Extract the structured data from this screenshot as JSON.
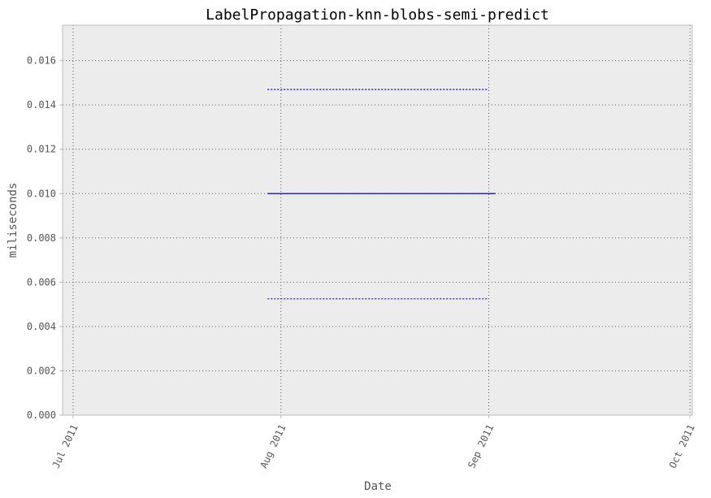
{
  "chart_data": {
    "type": "line",
    "title": "LabelPropagation-knn-blobs-semi-predict",
    "xlabel": "Date",
    "ylabel": "miliseconds",
    "x_tick_labels": [
      "Jul 2011",
      "Aug 2011",
      "Sep 2011",
      "Oct 2011"
    ],
    "y_tick_labels": [
      "0.000",
      "0.002",
      "0.004",
      "0.006",
      "0.008",
      "0.010",
      "0.012",
      "0.014",
      "0.016"
    ],
    "xlim": [
      "2011-06-28",
      "2012-10-01"
    ],
    "ylim": [
      0,
      0.0176
    ],
    "grid": true,
    "series": [
      {
        "style": "solid",
        "color": "#0000ff",
        "x": [
          "2011-07-30",
          "2011-09-02"
        ],
        "values": [
          0.01,
          0.01
        ]
      },
      {
        "style": "dotted",
        "color": "#0000ff",
        "x": [
          "2011-07-30",
          "2011-09-01"
        ],
        "values": [
          0.0147,
          0.0147
        ]
      },
      {
        "style": "dotted",
        "color": "#0000ff",
        "x": [
          "2011-07-30",
          "2011-09-01"
        ],
        "values": [
          0.00525,
          0.00525
        ]
      }
    ],
    "colors": {
      "plot_background": "#ececec",
      "frame": "#bcbcbc",
      "grid": "#555555",
      "line": "#0000ff"
    }
  }
}
